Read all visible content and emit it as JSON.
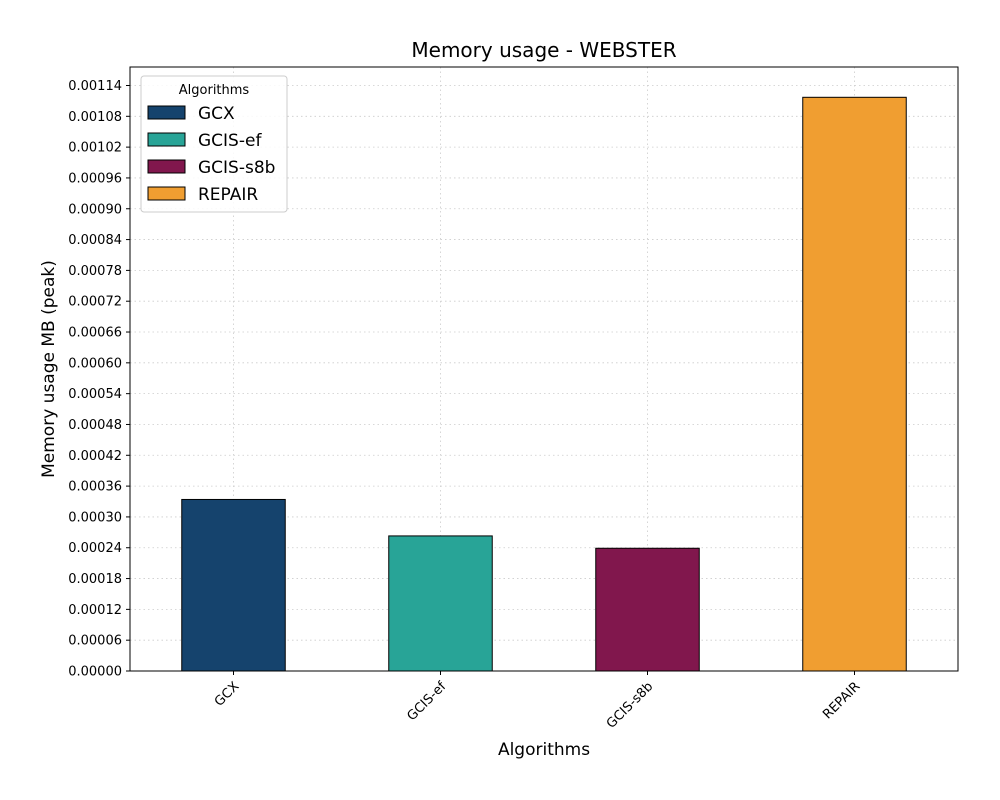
{
  "chart_data": {
    "type": "bar",
    "title": "Memory usage -  WEBSTER",
    "xlabel": "Algorithms",
    "ylabel": "Memory usage MB (peak)",
    "categories": [
      "GCX",
      "GCIS-ef",
      "GCIS-s8b",
      "REPAIR"
    ],
    "values": [
      0.000334,
      0.000263,
      0.000239,
      0.001117
    ],
    "colors": [
      "#15436d",
      "#28a497",
      "#81174d",
      "#f09e31"
    ],
    "ylim": [
      0,
      0.001176
    ],
    "yticks": [
      "0.00000",
      "0.00006",
      "0.00012",
      "0.00018",
      "0.00024",
      "0.00030",
      "0.00036",
      "0.00042",
      "0.00048",
      "0.00054",
      "0.00060",
      "0.00066",
      "0.00072",
      "0.00078",
      "0.00084",
      "0.00090",
      "0.00096",
      "0.00102",
      "0.00108",
      "0.00114"
    ],
    "grid": true,
    "legend": {
      "title": "Algorithms",
      "placement": "top-left",
      "entries": [
        "GCX",
        "GCIS-ef",
        "GCIS-s8b",
        "REPAIR"
      ]
    }
  }
}
